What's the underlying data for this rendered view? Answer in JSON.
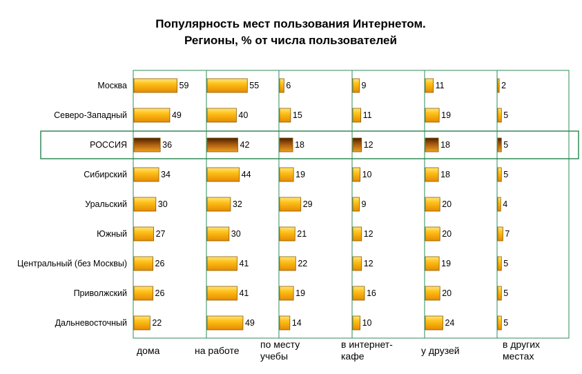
{
  "chart_data": {
    "type": "bar",
    "title_lines": [
      "Популярность мест пользования Интернетом.",
      "Регионы, % от числа пользователей"
    ],
    "categories": [
      "Москва",
      "Северо-Западный",
      "РОССИЯ",
      "Сибирский",
      "Уральский",
      "Южный",
      "Центральный (без Москвы)",
      "Приволжский",
      "Дальневосточный"
    ],
    "highlight_category": "РОССИЯ",
    "series": [
      {
        "name_lines": [
          "дома"
        ],
        "values": [
          59,
          49,
          36,
          34,
          30,
          27,
          26,
          26,
          22
        ]
      },
      {
        "name_lines": [
          "на работе"
        ],
        "values": [
          55,
          40,
          42,
          44,
          32,
          30,
          41,
          41,
          49
        ]
      },
      {
        "name_lines": [
          "по месту",
          "учебы"
        ],
        "values": [
          6,
          15,
          18,
          19,
          29,
          21,
          22,
          19,
          14
        ]
      },
      {
        "name_lines": [
          "в интернет-",
          "кафе"
        ],
        "values": [
          9,
          11,
          12,
          10,
          9,
          12,
          12,
          16,
          10
        ]
      },
      {
        "name_lines": [
          "у друзей"
        ],
        "values": [
          11,
          19,
          18,
          18,
          20,
          20,
          19,
          20,
          24
        ]
      },
      {
        "name_lines": [
          "в других",
          "местах"
        ],
        "values": [
          2,
          5,
          5,
          5,
          4,
          7,
          5,
          5,
          5
        ]
      }
    ],
    "value_max_per_panel": 100,
    "grid": true,
    "colors": {
      "bar_light": "#ffd633",
      "bar_mid": "#ffb000",
      "bar_dark": "#e08a00",
      "highlight_dark": "#6b3300",
      "highlight_mid": "#b86a10",
      "grid": "#2e8b57"
    }
  }
}
